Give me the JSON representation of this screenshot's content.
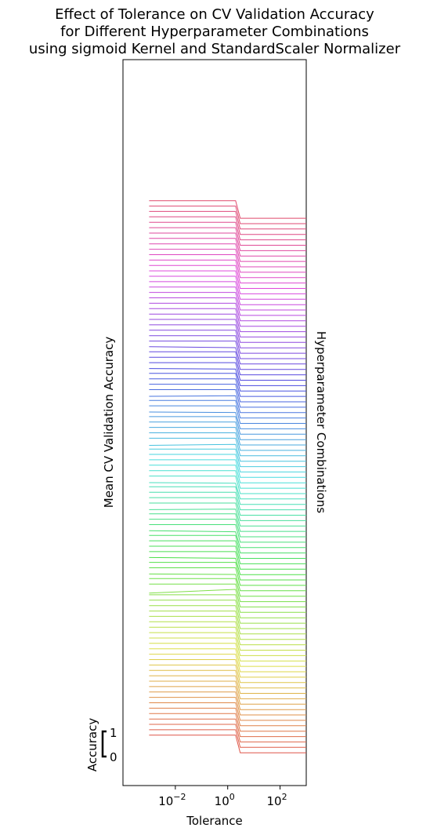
{
  "chart_data": {
    "type": "line",
    "title_lines": [
      "Effect of Tolerance on CV Validation Accuracy",
      "for Different Hyperparameter Combinations",
      "using sigmoid Kernel and StandardScaler Normalizer"
    ],
    "xlabel": "Tolerance",
    "ylabel": "Mean CV Validation Accuracy",
    "ylabel_right": "Hyperparameter Combinations",
    "scale_bar_label": "Accuracy",
    "scale_bar_ticks": [
      "0",
      "1"
    ],
    "x_scale": "log",
    "xlim": [
      0.0001,
      1000
    ],
    "x_ticks": [
      {
        "value": 0.01,
        "base": "10",
        "exp": "−2"
      },
      {
        "value": 1,
        "base": "10",
        "exp": "0"
      },
      {
        "value": 100,
        "base": "10",
        "exp": "2"
      }
    ],
    "tolerance": [
      0.001,
      2,
      3,
      1000
    ],
    "series_count": 100,
    "row_step": 0.215,
    "typical_accuracy": [
      0.85,
      0.85,
      0.15,
      0.15
    ],
    "series_overrides": [
      {
        "index": 27,
        "accuracy": [
          0.7,
          0.85,
          0.15,
          0.15
        ]
      },
      {
        "index": 30,
        "accuracy": [
          0.82,
          0.8,
          0.15,
          0.15
        ]
      },
      {
        "index": 33,
        "accuracy": [
          0.83,
          0.8,
          0.15,
          0.15
        ]
      },
      {
        "index": 38,
        "accuracy": [
          0.82,
          0.78,
          0.15,
          0.15
        ]
      },
      {
        "index": 42,
        "accuracy": [
          0.8,
          0.82,
          0.15,
          0.15
        ]
      },
      {
        "index": 47,
        "accuracy": [
          0.8,
          0.78,
          0.15,
          0.15
        ]
      },
      {
        "index": 54,
        "accuracy": [
          0.78,
          0.82,
          0.15,
          0.15
        ]
      },
      {
        "index": 60,
        "accuracy": [
          0.82,
          0.8,
          0.15,
          0.15
        ]
      },
      {
        "index": 63,
        "accuracy": [
          0.8,
          0.82,
          0.15,
          0.15
        ]
      },
      {
        "index": 68,
        "accuracy": [
          0.83,
          0.81,
          0.15,
          0.15
        ]
      },
      {
        "index": 72,
        "accuracy": [
          0.84,
          0.8,
          0.15,
          0.15
        ]
      }
    ],
    "palette": "husl-reversed"
  }
}
